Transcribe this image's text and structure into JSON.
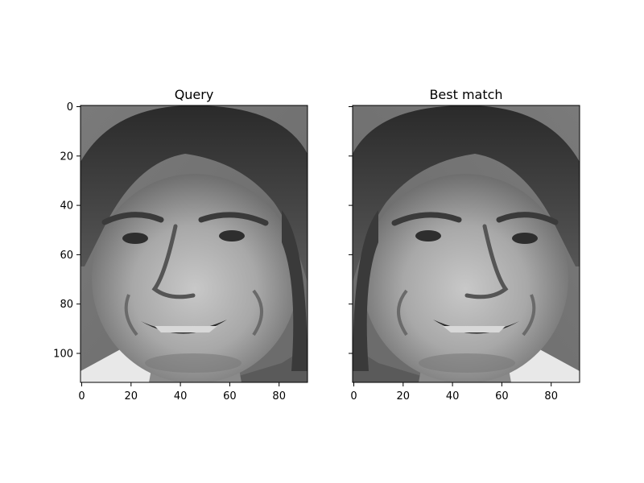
{
  "panels": [
    {
      "title": "Query",
      "x_ticks": [
        "0",
        "20",
        "40",
        "60",
        "80"
      ],
      "y_ticks": [
        "0",
        "20",
        "40",
        "60",
        "80",
        "100"
      ],
      "x_range": [
        0,
        92
      ],
      "y_range": [
        0,
        112
      ],
      "show_y_tick_labels": true,
      "image": "grayscale face photograph"
    },
    {
      "title": "Best match",
      "x_ticks": [
        "0",
        "20",
        "40",
        "60",
        "80"
      ],
      "y_ticks": [
        "0",
        "20",
        "40",
        "60",
        "80",
        "100"
      ],
      "x_range": [
        0,
        92
      ],
      "y_range": [
        0,
        112
      ],
      "show_y_tick_labels": false,
      "image": "grayscale face photograph"
    }
  ],
  "colors": {
    "background": "#ffffff",
    "axis": "#000000"
  }
}
